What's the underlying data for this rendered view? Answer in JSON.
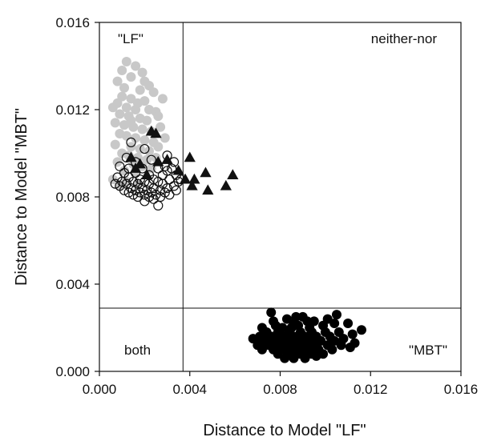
{
  "chart_data": {
    "type": "scatter",
    "title": "",
    "xlabel": "Distance to Model \"LF\"",
    "ylabel": "Distance to Model \"MBT\"",
    "xlim": [
      0.0,
      0.016
    ],
    "ylim": [
      0.0,
      0.016
    ],
    "x_ticks": [
      "0.000",
      "0.004",
      "0.008",
      "0.012",
      "0.016"
    ],
    "y_ticks": [
      "0.000",
      "0.004",
      "0.008",
      "0.012",
      "0.016"
    ],
    "thresholds": {
      "x": 0.0037,
      "y": 0.0029
    },
    "region_labels": {
      "top_left": "\"LF\"",
      "top_right": "neither-nor",
      "bottom_left": "both",
      "bottom_right": "\"MBT\""
    },
    "grid": false,
    "series": [
      {
        "marker": "circle-filled-gray",
        "color": "#c8c8c8",
        "points": [
          [
            0.0012,
            0.0142
          ],
          [
            0.001,
            0.0138
          ],
          [
            0.0016,
            0.014
          ],
          [
            0.0014,
            0.0135
          ],
          [
            0.0008,
            0.0133
          ],
          [
            0.002,
            0.0133
          ],
          [
            0.0022,
            0.0131
          ],
          [
            0.0018,
            0.0129
          ],
          [
            0.0024,
            0.0128
          ],
          [
            0.001,
            0.0126
          ],
          [
            0.0014,
            0.0125
          ],
          [
            0.002,
            0.0124
          ],
          [
            0.0008,
            0.0123
          ],
          [
            0.0028,
            0.0125
          ],
          [
            0.0012,
            0.0121
          ],
          [
            0.0016,
            0.012
          ],
          [
            0.0022,
            0.012
          ],
          [
            0.0025,
            0.0119
          ],
          [
            0.0006,
            0.0121
          ],
          [
            0.0009,
            0.0118
          ],
          [
            0.0013,
            0.0117
          ],
          [
            0.0018,
            0.0116
          ],
          [
            0.0021,
            0.0115
          ],
          [
            0.0026,
            0.0117
          ],
          [
            0.0007,
            0.0114
          ],
          [
            0.0011,
            0.0113
          ],
          [
            0.0015,
            0.0112
          ],
          [
            0.0019,
            0.0111
          ],
          [
            0.0023,
            0.011
          ],
          [
            0.0027,
            0.0112
          ],
          [
            0.0009,
            0.0109
          ],
          [
            0.0012,
            0.0108
          ],
          [
            0.0016,
            0.0107
          ],
          [
            0.002,
            0.0106
          ],
          [
            0.0024,
            0.0105
          ],
          [
            0.0029,
            0.0107
          ],
          [
            0.0007,
            0.0104
          ],
          [
            0.0014,
            0.0103
          ],
          [
            0.0018,
            0.0102
          ],
          [
            0.0022,
            0.0101
          ],
          [
            0.0026,
            0.0103
          ],
          [
            0.001,
            0.01
          ],
          [
            0.0013,
            0.0099
          ],
          [
            0.0017,
            0.0098
          ],
          [
            0.0021,
            0.0097
          ],
          [
            0.0025,
            0.0098
          ],
          [
            0.0008,
            0.0096
          ],
          [
            0.0015,
            0.0095
          ],
          [
            0.0019,
            0.0094
          ],
          [
            0.0023,
            0.0093
          ],
          [
            0.0011,
            0.0092
          ],
          [
            0.0016,
            0.0091
          ],
          [
            0.0006,
            0.0088
          ],
          [
            0.0012,
            0.0087
          ],
          [
            0.0017,
            0.0086
          ],
          [
            0.0009,
            0.0085
          ],
          [
            0.0014,
            0.0115
          ],
          [
            0.0011,
            0.013
          ],
          [
            0.0019,
            0.0137
          ],
          [
            0.0017,
            0.0123
          ]
        ]
      },
      {
        "marker": "circle-open",
        "color": "#111111",
        "points": [
          [
            0.0014,
            0.0105
          ],
          [
            0.002,
            0.0102
          ],
          [
            0.003,
            0.0099
          ],
          [
            0.0023,
            0.0097
          ],
          [
            0.0016,
            0.0096
          ],
          [
            0.0033,
            0.0096
          ],
          [
            0.0009,
            0.0094
          ],
          [
            0.0013,
            0.0093
          ],
          [
            0.0019,
            0.0093
          ],
          [
            0.0026,
            0.0093
          ],
          [
            0.003,
            0.0092
          ],
          [
            0.0011,
            0.0091
          ],
          [
            0.0016,
            0.0091
          ],
          [
            0.0022,
            0.009
          ],
          [
            0.0028,
            0.009
          ],
          [
            0.0034,
            0.009
          ],
          [
            0.0008,
            0.0089
          ],
          [
            0.0013,
            0.0089
          ],
          [
            0.0018,
            0.0088
          ],
          [
            0.0024,
            0.0088
          ],
          [
            0.0031,
            0.0088
          ],
          [
            0.001,
            0.0087
          ],
          [
            0.0015,
            0.0087
          ],
          [
            0.002,
            0.0087
          ],
          [
            0.0026,
            0.0087
          ],
          [
            0.0035,
            0.0087
          ],
          [
            0.0007,
            0.0086
          ],
          [
            0.0012,
            0.0086
          ],
          [
            0.0017,
            0.0086
          ],
          [
            0.0022,
            0.0086
          ],
          [
            0.0028,
            0.0086
          ],
          [
            0.0033,
            0.0085
          ],
          [
            0.0009,
            0.0085
          ],
          [
            0.0014,
            0.0084
          ],
          [
            0.0019,
            0.0084
          ],
          [
            0.0024,
            0.0084
          ],
          [
            0.003,
            0.0084
          ],
          [
            0.0011,
            0.0083
          ],
          [
            0.0016,
            0.0083
          ],
          [
            0.0021,
            0.0083
          ],
          [
            0.0027,
            0.0083
          ],
          [
            0.0034,
            0.0083
          ],
          [
            0.0013,
            0.0082
          ],
          [
            0.0018,
            0.0082
          ],
          [
            0.0023,
            0.0082
          ],
          [
            0.0029,
            0.0082
          ],
          [
            0.0015,
            0.0081
          ],
          [
            0.002,
            0.0081
          ],
          [
            0.0025,
            0.0081
          ],
          [
            0.0031,
            0.0081
          ],
          [
            0.0017,
            0.008
          ],
          [
            0.0022,
            0.008
          ],
          [
            0.0027,
            0.008
          ],
          [
            0.002,
            0.0078
          ],
          [
            0.0026,
            0.0076
          ],
          [
            0.0024,
            0.0079
          ],
          [
            0.0029,
            0.0094
          ],
          [
            0.0012,
            0.0098
          ],
          [
            0.0032,
            0.0093
          ],
          [
            0.0036,
            0.0088
          ]
        ]
      },
      {
        "marker": "triangle-filled",
        "color": "#111111",
        "points": [
          [
            0.0023,
            0.011
          ],
          [
            0.0025,
            0.0109
          ],
          [
            0.0014,
            0.0098
          ],
          [
            0.0018,
            0.0095
          ],
          [
            0.0026,
            0.0096
          ],
          [
            0.003,
            0.0097
          ],
          [
            0.004,
            0.0098
          ],
          [
            0.0035,
            0.0092
          ],
          [
            0.0047,
            0.0091
          ],
          [
            0.0038,
            0.0088
          ],
          [
            0.0042,
            0.0088
          ],
          [
            0.0059,
            0.009
          ],
          [
            0.0056,
            0.0085
          ],
          [
            0.0048,
            0.0083
          ],
          [
            0.0041,
            0.0085
          ],
          [
            0.0016,
            0.0093
          ],
          [
            0.0021,
            0.009
          ]
        ]
      },
      {
        "marker": "circle-filled-black",
        "color": "#000000",
        "points": [
          [
            0.0076,
            0.0027
          ],
          [
            0.0083,
            0.0024
          ],
          [
            0.009,
            0.0025
          ],
          [
            0.0095,
            0.0023
          ],
          [
            0.0086,
            0.0022
          ],
          [
            0.0078,
            0.0021
          ],
          [
            0.0072,
            0.002
          ],
          [
            0.0081,
            0.002
          ],
          [
            0.0088,
            0.0021
          ],
          [
            0.0093,
            0.002
          ],
          [
            0.0099,
            0.0021
          ],
          [
            0.0104,
            0.0022
          ],
          [
            0.011,
            0.0022
          ],
          [
            0.0116,
            0.0019
          ],
          [
            0.0074,
            0.0018
          ],
          [
            0.0079,
            0.0018
          ],
          [
            0.0084,
            0.0018
          ],
          [
            0.0089,
            0.0018
          ],
          [
            0.0094,
            0.0018
          ],
          [
            0.01,
            0.0018
          ],
          [
            0.0106,
            0.0018
          ],
          [
            0.0112,
            0.0017
          ],
          [
            0.0071,
            0.0016
          ],
          [
            0.0076,
            0.0016
          ],
          [
            0.0081,
            0.0016
          ],
          [
            0.0086,
            0.0016
          ],
          [
            0.0091,
            0.0016
          ],
          [
            0.0096,
            0.0016
          ],
          [
            0.0102,
            0.0016
          ],
          [
            0.0108,
            0.0015
          ],
          [
            0.0073,
            0.0014
          ],
          [
            0.0078,
            0.0014
          ],
          [
            0.0083,
            0.0014
          ],
          [
            0.0088,
            0.0014
          ],
          [
            0.0093,
            0.0014
          ],
          [
            0.0098,
            0.0014
          ],
          [
            0.0104,
            0.0014
          ],
          [
            0.007,
            0.0012
          ],
          [
            0.0075,
            0.0012
          ],
          [
            0.008,
            0.0012
          ],
          [
            0.0085,
            0.0012
          ],
          [
            0.009,
            0.0012
          ],
          [
            0.0095,
            0.0012
          ],
          [
            0.0101,
            0.0012
          ],
          [
            0.0107,
            0.0012
          ],
          [
            0.0072,
            0.001
          ],
          [
            0.0077,
            0.001
          ],
          [
            0.0082,
            0.001
          ],
          [
            0.0087,
            0.001
          ],
          [
            0.0092,
            0.001
          ],
          [
            0.0097,
            0.001
          ],
          [
            0.0103,
            0.001
          ],
          [
            0.0111,
            0.0011
          ],
          [
            0.0079,
            0.0008
          ],
          [
            0.0084,
            0.0008
          ],
          [
            0.0089,
            0.0008
          ],
          [
            0.0094,
            0.0008
          ],
          [
            0.0099,
            0.0008
          ],
          [
            0.0086,
            0.0006
          ],
          [
            0.0091,
            0.0006
          ],
          [
            0.0096,
            0.0007
          ],
          [
            0.0082,
            0.0006
          ],
          [
            0.0105,
            0.0026
          ],
          [
            0.0101,
            0.0024
          ],
          [
            0.0068,
            0.0015
          ],
          [
            0.0113,
            0.0013
          ],
          [
            0.0087,
            0.0025
          ],
          [
            0.0077,
            0.0023
          ],
          [
            0.0092,
            0.0023
          ],
          [
            0.0085,
            0.002
          ]
        ]
      }
    ]
  }
}
